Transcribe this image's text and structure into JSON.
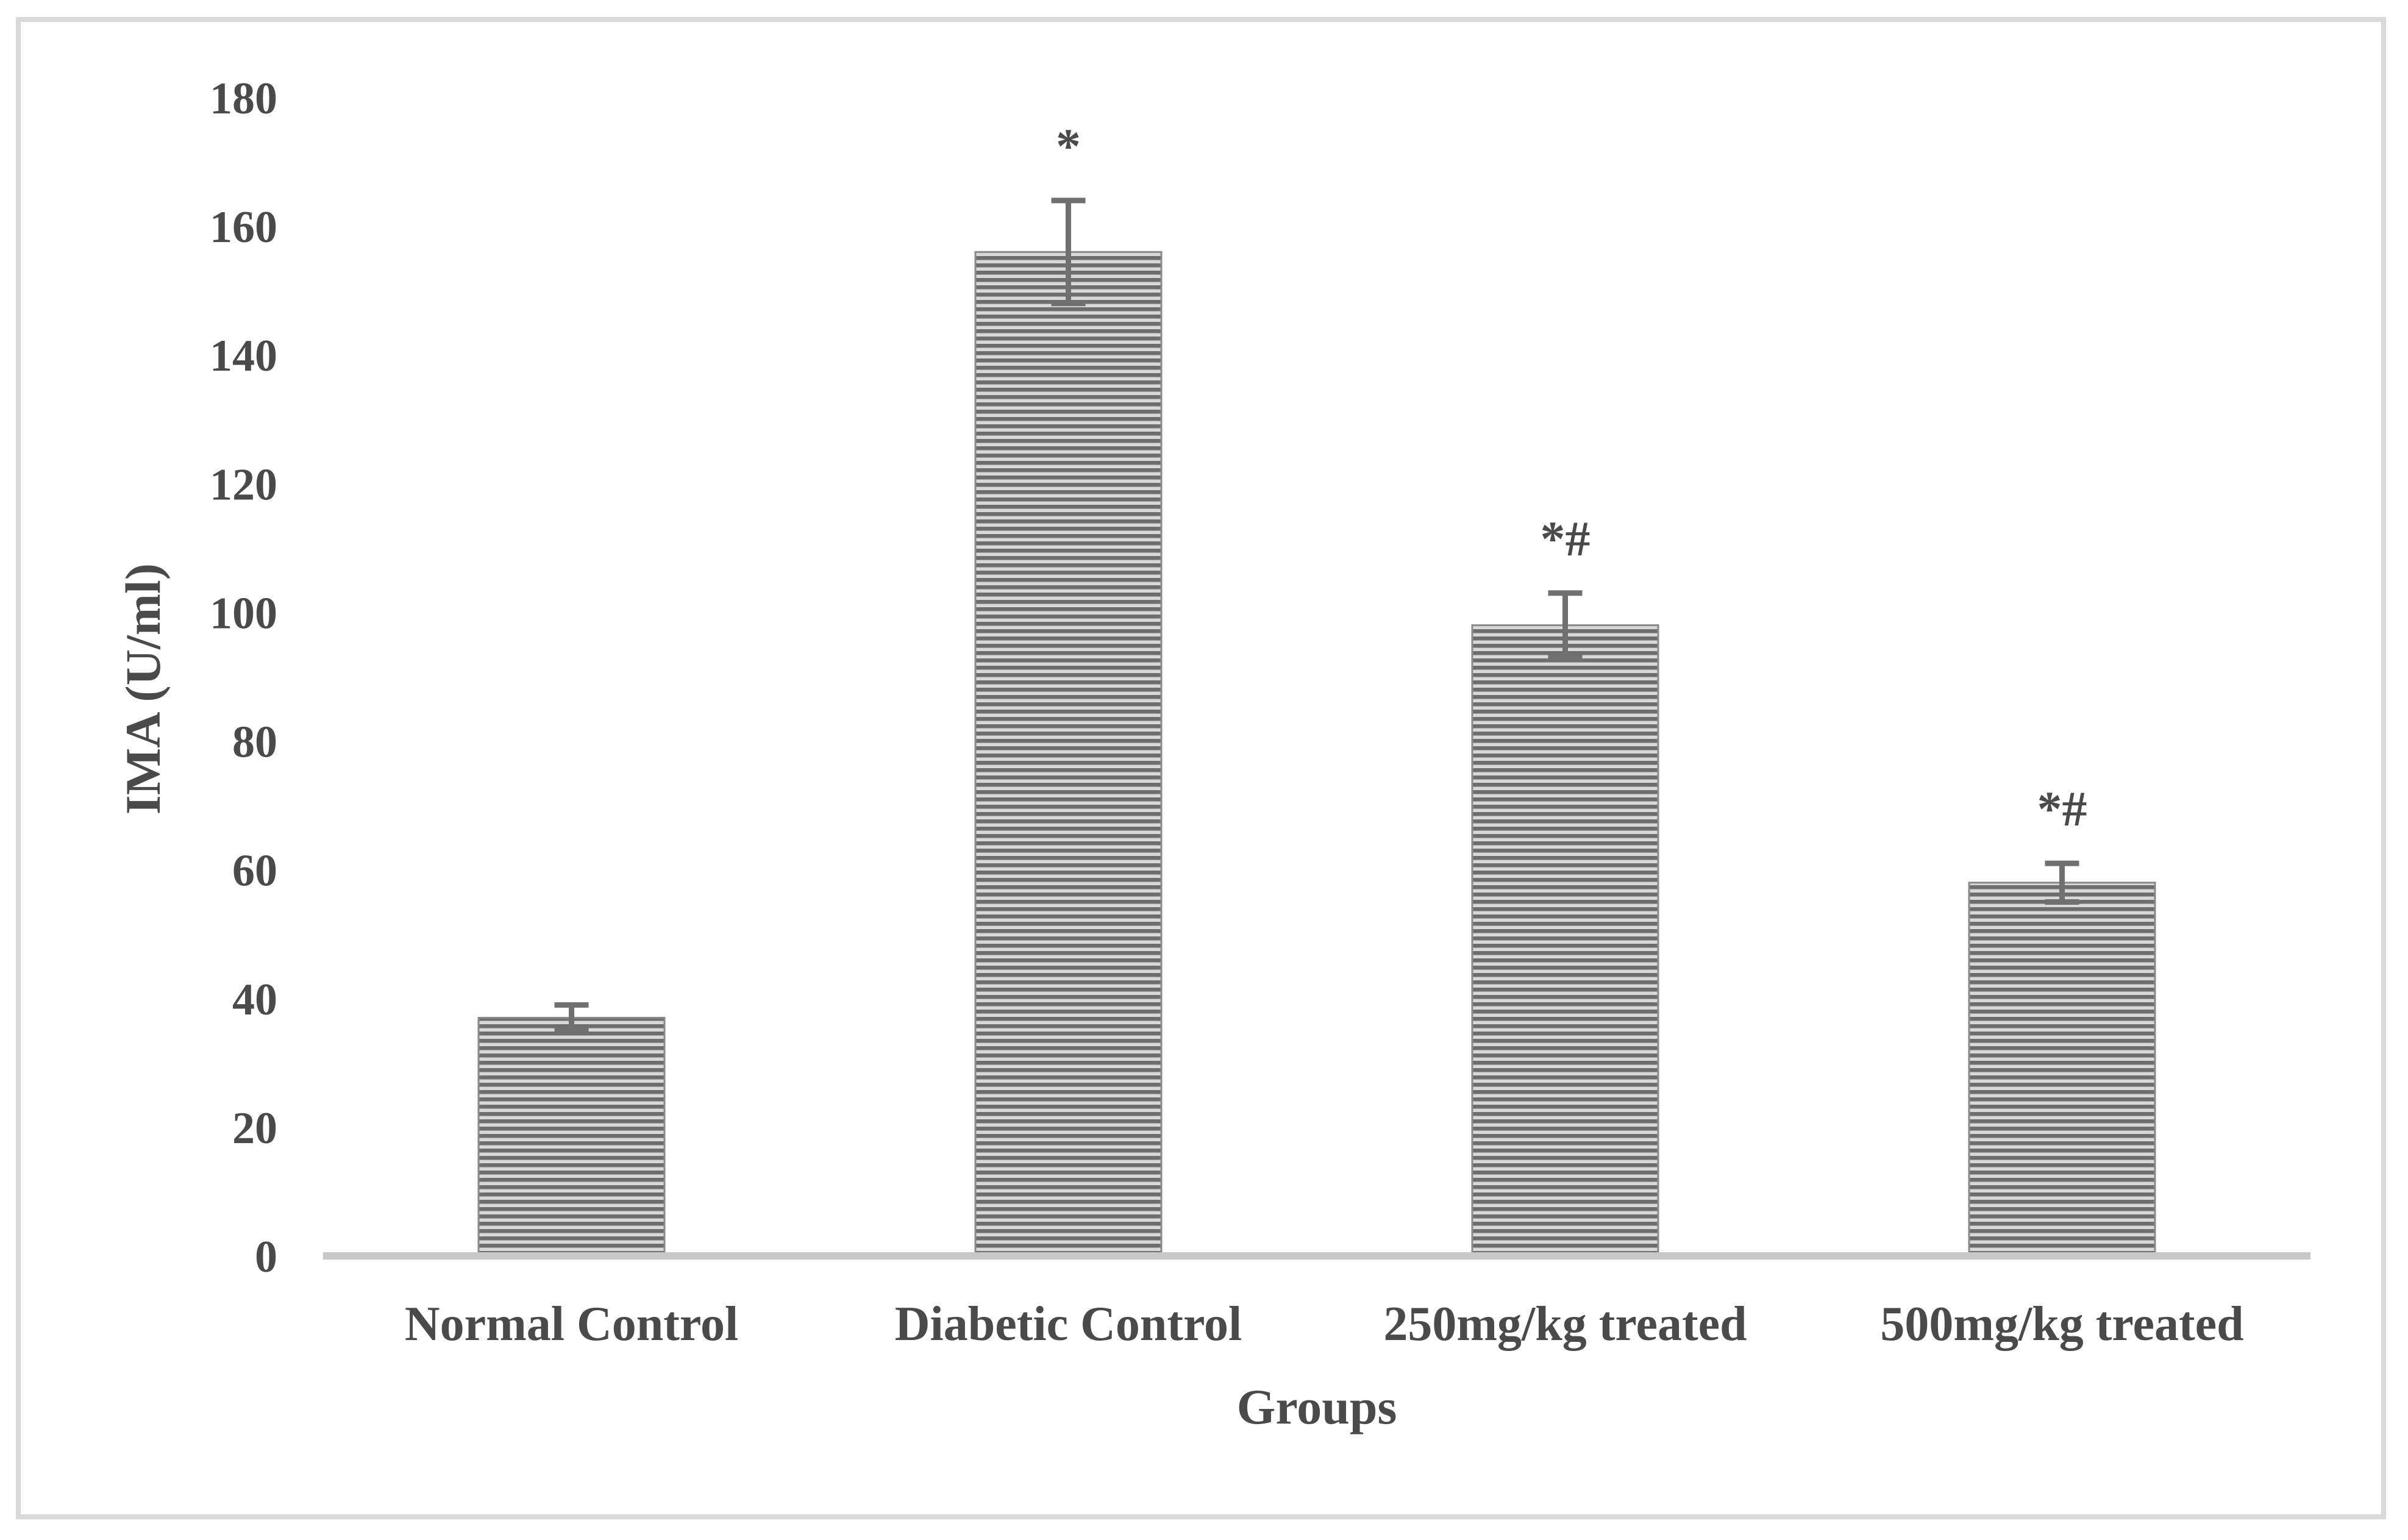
{
  "chart_data": {
    "type": "bar",
    "title": "",
    "xlabel": "Groups",
    "ylabel": "IMA (U/ml)",
    "categories": [
      "Normal Control",
      "Diabetic Control",
      "250mg/kg treated",
      "500mg/kg treated"
    ],
    "values": [
      37,
      156,
      98,
      58
    ],
    "errors": [
      2,
      8,
      5,
      3
    ],
    "annotations": [
      "",
      "*",
      "*#",
      "*#"
    ],
    "ylim": [
      0,
      180
    ],
    "yticks": [
      0,
      20,
      40,
      60,
      80,
      100,
      120,
      140,
      160,
      180
    ],
    "grid": false,
    "legend": "none",
    "bar_pattern": "horizontal-stripes",
    "colors": {
      "bar_stripe_dark": "#6e6e6e",
      "bar_stripe_light": "#d8d8d8",
      "axis": "#c8c8c8",
      "error_bar": "#707070",
      "text": "#4a4a4a",
      "frame": "#d9d9d9"
    }
  }
}
